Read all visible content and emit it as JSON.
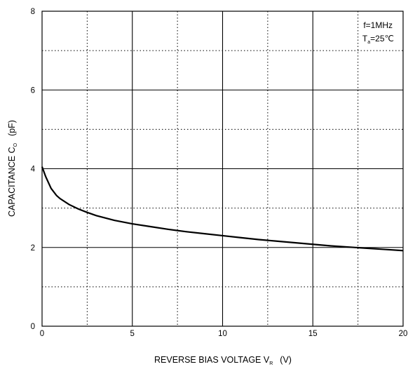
{
  "chart_data": {
    "type": "line",
    "title": "",
    "xlabel": {
      "main": "REVERSE BIAS VOLTAGE   V",
      "sub": "R",
      "unit": "(V)"
    },
    "ylabel": {
      "main": "CAPACITANCE   C",
      "sub": "O",
      "unit": "(pF)"
    },
    "xlim": [
      0,
      20
    ],
    "ylim": [
      0,
      8
    ],
    "x_ticks": [
      0,
      5,
      10,
      15,
      20
    ],
    "y_ticks": [
      0,
      2,
      4,
      6,
      8
    ],
    "x_tick_labels": [
      "0",
      "5",
      "10",
      "15",
      "20"
    ],
    "y_tick_labels": [
      "0",
      "2",
      "4",
      "6",
      "8"
    ],
    "grid": {
      "major": "solid",
      "minor": "dotted"
    },
    "annotations": {
      "condition1": "f=1MHz",
      "condition2_main": "T",
      "condition2_sub": "a",
      "condition2_rest": "=25℃"
    },
    "series": [
      {
        "x": [
          0,
          0.2,
          0.5,
          0.8,
          1.0,
          1.5,
          2.0,
          2.5,
          3.0,
          4.0,
          5.0,
          6.0,
          7.0,
          8.0,
          9.0,
          10.0,
          11.0,
          12.0,
          13.0,
          14.0,
          15.0,
          16.0,
          17.0,
          18.0,
          19.0,
          20.0
        ],
        "y": [
          4.05,
          3.8,
          3.5,
          3.32,
          3.24,
          3.09,
          2.98,
          2.89,
          2.81,
          2.69,
          2.6,
          2.53,
          2.46,
          2.4,
          2.35,
          2.3,
          2.25,
          2.2,
          2.16,
          2.12,
          2.08,
          2.04,
          2.01,
          1.98,
          1.95,
          1.92
        ]
      }
    ]
  }
}
